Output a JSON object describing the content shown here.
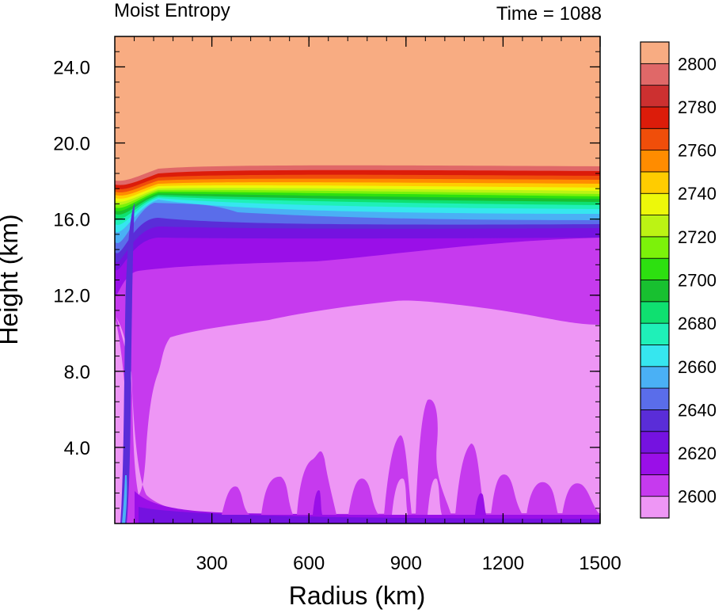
{
  "chart_data": {
    "type": "heatmap",
    "title_left": "Moist Entropy",
    "title_right": "Time = 1088",
    "xlabel": "Radius (km)",
    "ylabel": "Height (km)",
    "xlim": [
      0,
      1500
    ],
    "ylim": [
      0,
      25.6
    ],
    "x_ticks": [
      300,
      600,
      900,
      1200,
      1500
    ],
    "x_tick_labels": [
      "300",
      "600",
      "900",
      "1200",
      "1500"
    ],
    "y_ticks": [
      4,
      8,
      12,
      16,
      20,
      24
    ],
    "y_tick_labels": [
      "4.0",
      "8.0",
      "12.0",
      "16.0",
      "20.0",
      "24.0"
    ],
    "colorbar": {
      "levels": [
        2600,
        2610,
        2620,
        2630,
        2640,
        2650,
        2660,
        2670,
        2680,
        2690,
        2700,
        2710,
        2720,
        2730,
        2740,
        2750,
        2760,
        2770,
        2780,
        2790,
        2800
      ],
      "labels": [
        "2600",
        "2620",
        "2640",
        "2660",
        "2680",
        "2700",
        "2720",
        "2740",
        "2760",
        "2780",
        "2800"
      ],
      "colors": [
        "#EE96F5",
        "#C63AEE",
        "#9A0FE8",
        "#7512E0",
        "#5A2DD8",
        "#5A6DEA",
        "#4AB0F5",
        "#36E6EF",
        "#1FF0B8",
        "#0FE070",
        "#18C030",
        "#2DE010",
        "#7CF20A",
        "#BCF314",
        "#EDF80A",
        "#FFCC00",
        "#FF8C00",
        "#F04E0A",
        "#DC1C0A",
        "#CC3030",
        "#E06868",
        "#F8AC82"
      ]
    }
  }
}
